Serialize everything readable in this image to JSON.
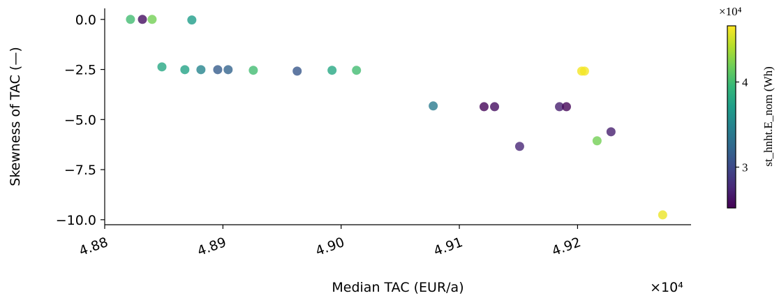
{
  "chart_data": {
    "type": "scatter",
    "xlabel": "Median TAC (EUR/a)",
    "ylabel": "Skewness of TAC (—)",
    "x_offset_label": "×10⁴",
    "xlim": [
      48800,
      49296
    ],
    "ylim": [
      -10.25,
      0.55
    ],
    "xticks": [
      {
        "value": 48800,
        "label": "4.88"
      },
      {
        "value": 48900,
        "label": "4.89"
      },
      {
        "value": 49000,
        "label": "4.90"
      },
      {
        "value": 49100,
        "label": "4.91"
      },
      {
        "value": 49200,
        "label": "4.92"
      }
    ],
    "yticks": [
      {
        "value": 0,
        "label": "0.0"
      },
      {
        "value": -2.5,
        "label": "−2.5"
      },
      {
        "value": -5,
        "label": "−5.0"
      },
      {
        "value": -7.5,
        "label": "−7.5"
      },
      {
        "value": -10,
        "label": "−10.0"
      }
    ],
    "grid": false,
    "colormap": "viridis",
    "series": [
      {
        "x": [
          48821.8,
          48831.9,
          48840.1,
          48873.7,
          48848.4,
          48867.8,
          48881.4,
          48895.6,
          48904.4,
          48925.7,
          48962.8,
          48992.3,
          49013.0,
          49077.9,
          49120.9,
          49129.8,
          49184.7,
          49190.6,
          49151.0,
          49228.3,
          49216.5,
          49203.5,
          49205.9,
          49272.0
        ],
        "values": [
          0,
          0,
          0,
          -0.03,
          -2.37,
          -2.51,
          -2.51,
          -2.51,
          -2.51,
          -2.54,
          -2.58,
          -2.54,
          -2.54,
          -4.32,
          -4.36,
          -4.36,
          -4.36,
          -4.36,
          -6.34,
          -5.61,
          -6.06,
          -2.58,
          -2.58,
          -9.76
        ],
        "color_values": [
          40000,
          26000,
          42000,
          37000,
          38000,
          37500,
          35000,
          31500,
          32000,
          40000,
          31000,
          38000,
          40000,
          34000,
          25500,
          26000,
          27000,
          25500,
          27500,
          27000,
          42000,
          46300,
          46300,
          46000
        ]
      }
    ],
    "colorbar": {
      "label": "st_hnht.E_nom (Wh)",
      "offset_label": "×10⁴",
      "lim": [
        25200,
        46600
      ],
      "ticks": [
        {
          "value": 30000,
          "label": "3"
        },
        {
          "value": 40000,
          "label": "4"
        }
      ]
    }
  }
}
